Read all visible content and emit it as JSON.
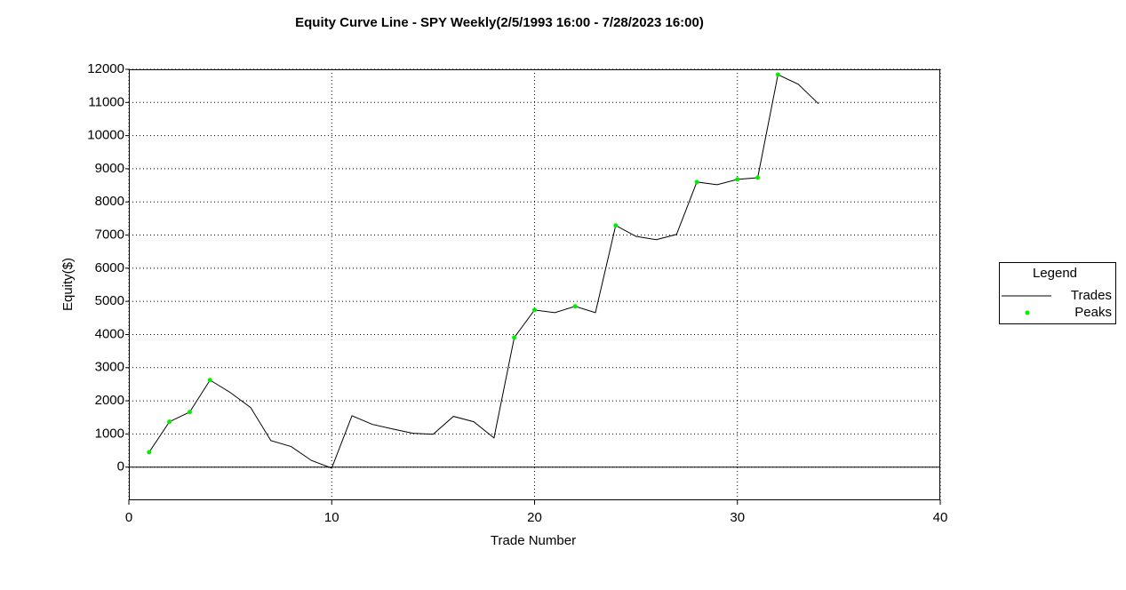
{
  "chart_data": {
    "type": "line",
    "title": "Equity Curve Line - SPY Weekly(2/5/1993 16:00 - 7/28/2023 16:00)",
    "x_label": "Trade Number",
    "y_label": "Equity($)",
    "legend_title": "Legend",
    "legend": "right",
    "xlim": [
      0,
      40
    ],
    "xticks": [
      0,
      10,
      20,
      30,
      40
    ],
    "ylim": [
      -1000,
      12000
    ],
    "yticks": [
      0,
      1000,
      2000,
      3000,
      4000,
      5000,
      6000,
      7000,
      8000,
      9000,
      10000,
      11000,
      12000
    ],
    "grid": true,
    "series": [
      {
        "name": "Trades",
        "color": "#000000",
        "mode": "line",
        "x": [
          1,
          2,
          3,
          4,
          5,
          6,
          7,
          8,
          9,
          10,
          11,
          12,
          13,
          14,
          15,
          16,
          17,
          18,
          19,
          20,
          21,
          22,
          23,
          24,
          25,
          26,
          27,
          28,
          29,
          30,
          31,
          32,
          33,
          34
        ],
        "values": [
          450,
          1370,
          1660,
          2625,
          2250,
          1800,
          800,
          620,
          200,
          -30,
          1550,
          1290,
          1150,
          1020,
          990,
          1530,
          1370,
          880,
          3910,
          4740,
          4660,
          4850,
          4660,
          7290,
          6960,
          6860,
          7020,
          8600,
          8520,
          8680,
          8730,
          11840,
          11550,
          10960
        ]
      },
      {
        "name": "Peaks",
        "color": "#00ee00",
        "mode": "markers",
        "x": [
          1,
          2,
          3,
          4,
          19,
          20,
          22,
          24,
          28,
          30,
          31,
          32
        ],
        "values": [
          450,
          1370,
          1660,
          2625,
          3910,
          4740,
          4850,
          7290,
          8600,
          8680,
          8730,
          11840
        ]
      }
    ]
  }
}
